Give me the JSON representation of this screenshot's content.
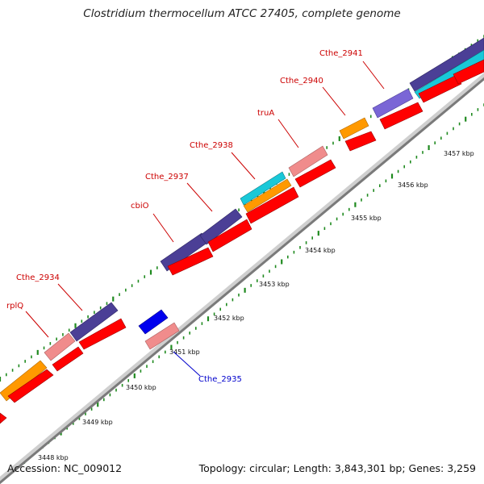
{
  "title": "Clostridium thermocellum ATCC 27405, complete genome",
  "footer": {
    "accession": "Accession: NC_009012",
    "summary": "Topology: circular; Length: 3,843,301 bp; Genes: 3,259"
  },
  "colors": {
    "backbone": "#9a9a9a",
    "tick": "#1f8a1f",
    "label_forward": "#cc0000",
    "label_reverse": "#0000cc",
    "cds": "#ff0000",
    "dark_blue": "#4b3f96",
    "light_red": "#f08c8c",
    "orange": "#ff9900",
    "cyan": "#19c8d8",
    "blue": "#0000ee",
    "violet": "#7a66d6"
  },
  "scale_labels": [
    "3448 kbp",
    "3449 kbp",
    "3450 kbp",
    "3451 kbp",
    "3452 kbp",
    "3453 kbp",
    "3454 kbp",
    "3455 kbp",
    "3456 kbp",
    "3457 kbp"
  ],
  "gene_labels": [
    {
      "text": "rplQ",
      "strand": "forward"
    },
    {
      "text": "Cthe_2934",
      "strand": "forward"
    },
    {
      "text": "cbiO",
      "strand": "forward"
    },
    {
      "text": "Cthe_2937",
      "strand": "forward"
    },
    {
      "text": "Cthe_2938",
      "strand": "forward"
    },
    {
      "text": "truA",
      "strand": "forward"
    },
    {
      "text": "Cthe_2940",
      "strand": "forward"
    },
    {
      "text": "Cthe_2941",
      "strand": "forward"
    },
    {
      "text": "Cthe_2935",
      "strand": "reverse"
    }
  ]
}
